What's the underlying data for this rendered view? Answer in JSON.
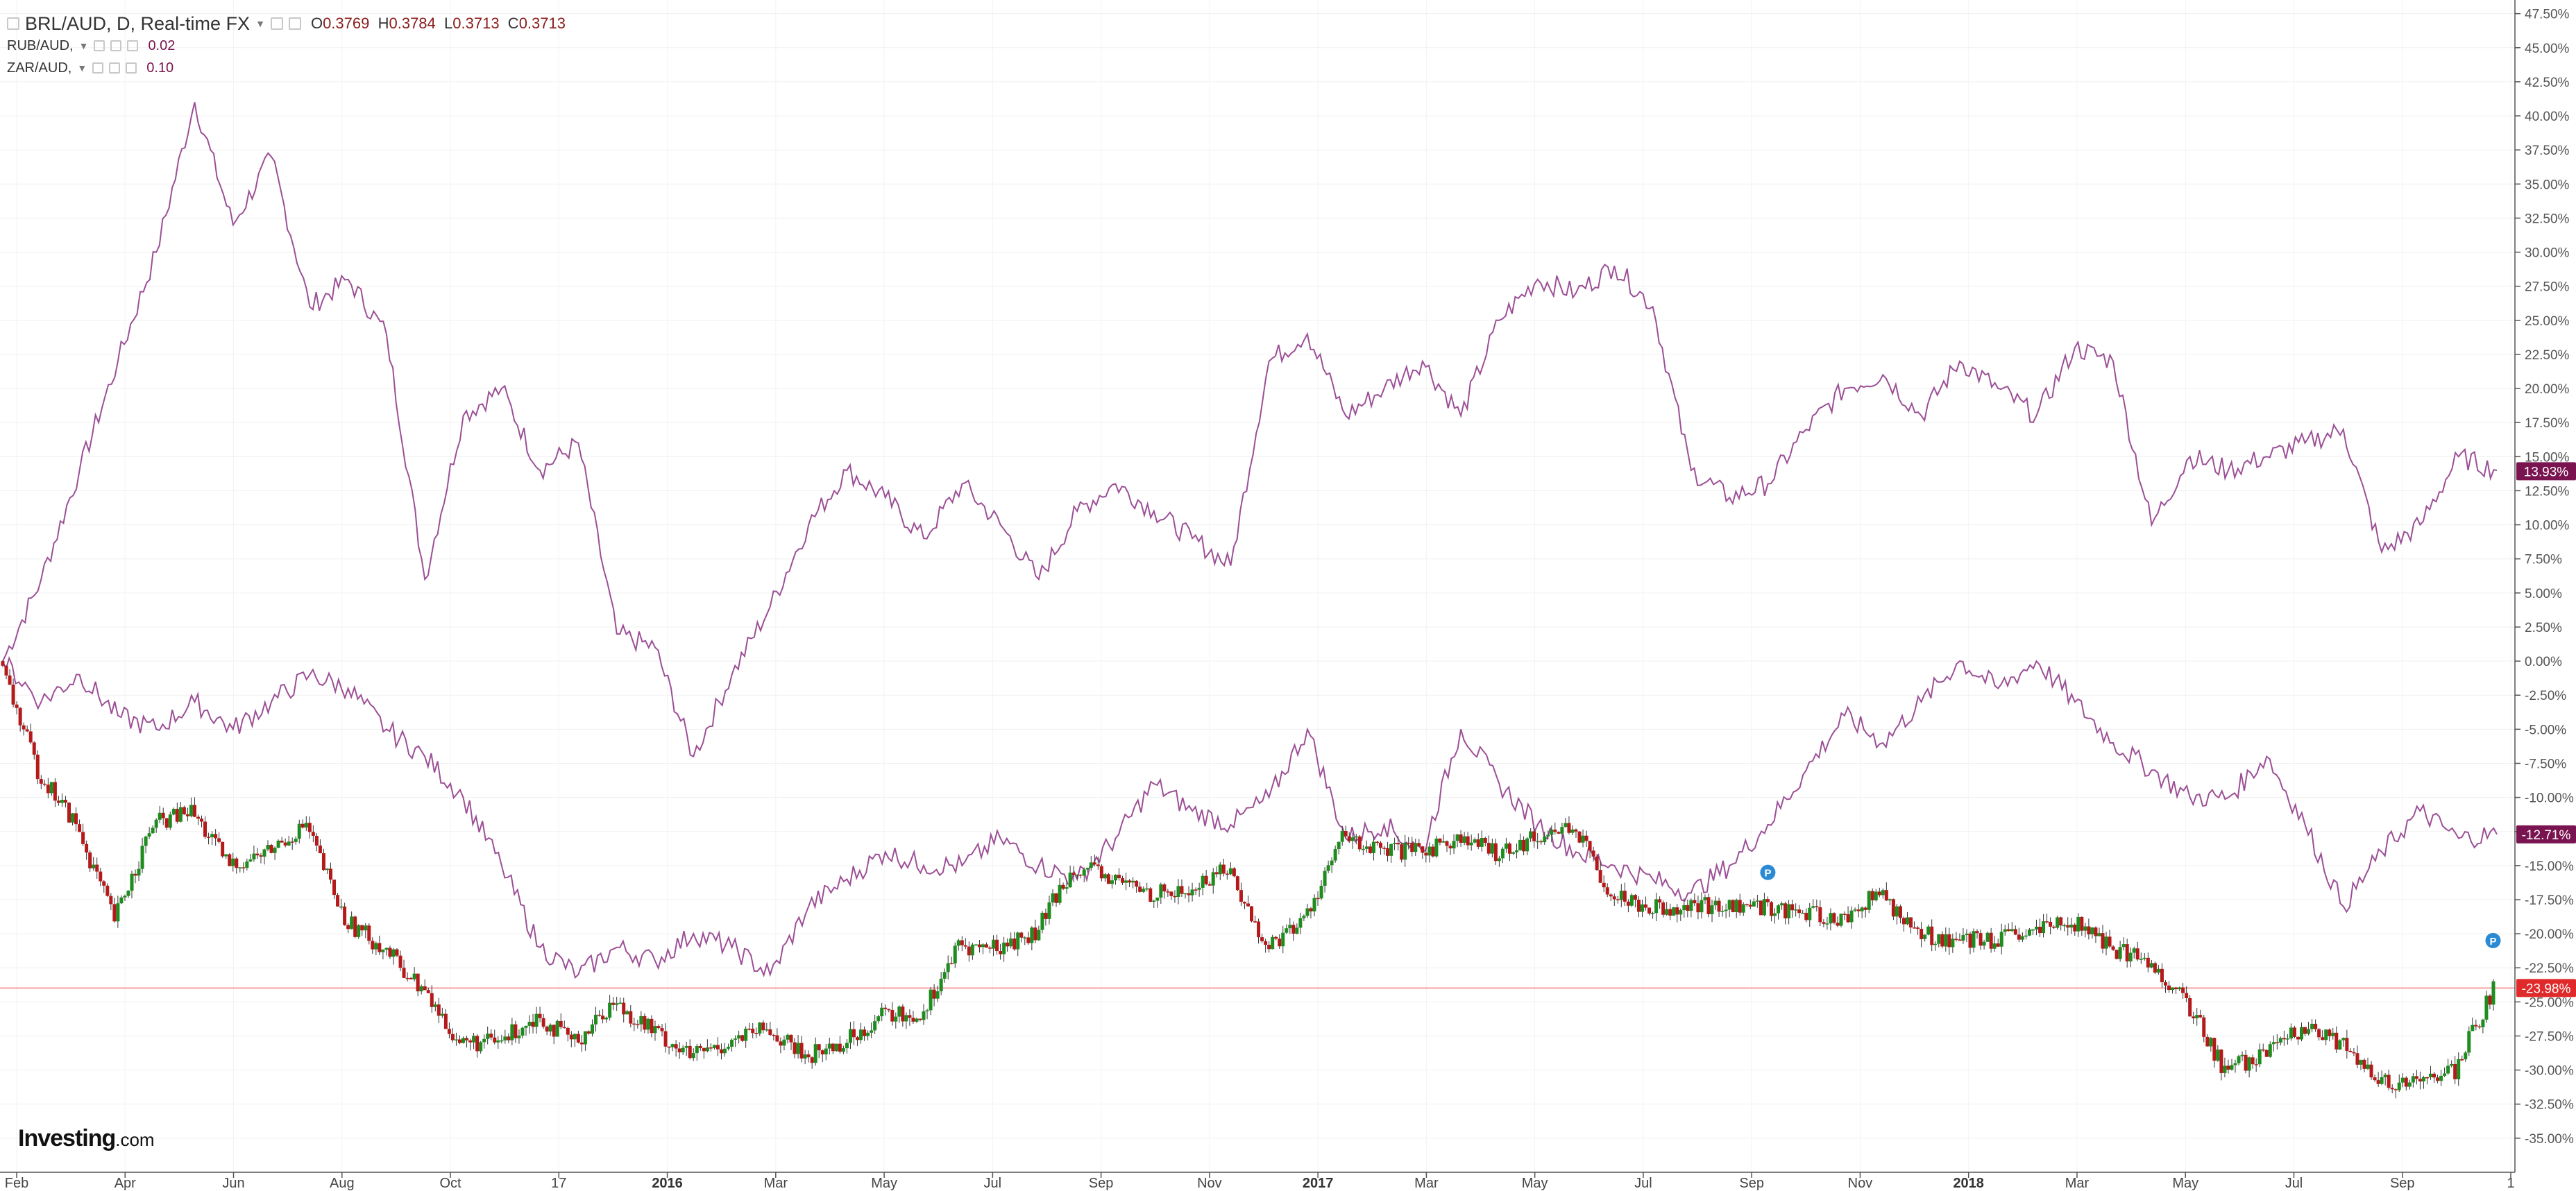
{
  "legend": {
    "main_symbol": "BRL/AUD, D, Real-time FX",
    "ohlc": {
      "o_label": "O",
      "o": "0.3769",
      "h_label": "H",
      "h": "0.3784",
      "l_label": "L",
      "l": "0.3713",
      "c_label": "C",
      "c": "0.3713"
    },
    "comparisons": [
      {
        "symbol": "RUB/AUD,",
        "value": "0.02"
      },
      {
        "symbol": "ZAR/AUD,",
        "value": "0.10"
      }
    ]
  },
  "watermark": {
    "brand": "Investing",
    "suffix": ".com"
  },
  "colors": {
    "up": "#1e8c1e",
    "down": "#b41a1a",
    "compare": "#9c4f96",
    "last_rub": "#c11f1f",
    "last_zar": "#7a1450",
    "last_brl": "#e0292a"
  },
  "chart_data": {
    "type": "line",
    "title": "BRL/AUD, D, Real-time FX",
    "y_unit": "%",
    "ylim": [
      -37.5,
      48.5
    ],
    "y_ticks": [
      "47.50%",
      "45.00%",
      "42.50%",
      "40.00%",
      "37.50%",
      "35.00%",
      "32.50%",
      "30.00%",
      "27.50%",
      "25.00%",
      "22.50%",
      "20.00%",
      "17.50%",
      "15.00%",
      "12.50%",
      "10.00%",
      "7.50%",
      "5.00%",
      "2.50%",
      "0.00%",
      "-2.50%",
      "-5.00%",
      "-7.50%",
      "-10.00%",
      "-12.50%",
      "-15.00%",
      "-17.50%",
      "-20.00%",
      "-22.50%",
      "-25.00%",
      "-27.50%",
      "-30.00%",
      "-32.50%",
      "-35.00%"
    ],
    "x_ticks": [
      {
        "label": "Feb",
        "bold": false
      },
      {
        "label": "Apr",
        "bold": false
      },
      {
        "label": "Jun",
        "bold": false
      },
      {
        "label": "Aug",
        "bold": false
      },
      {
        "label": "Oct",
        "bold": false
      },
      {
        "label": "17",
        "bold": false
      },
      {
        "label": "2016",
        "bold": true
      },
      {
        "label": "Mar",
        "bold": false
      },
      {
        "label": "May",
        "bold": false
      },
      {
        "label": "Jul",
        "bold": false
      },
      {
        "label": "Sep",
        "bold": false
      },
      {
        "label": "Nov",
        "bold": false
      },
      {
        "label": "2017",
        "bold": true
      },
      {
        "label": "Mar",
        "bold": false
      },
      {
        "label": "May",
        "bold": false
      },
      {
        "label": "Jul",
        "bold": false
      },
      {
        "label": "Sep",
        "bold": false
      },
      {
        "label": "Nov",
        "bold": false
      },
      {
        "label": "2018",
        "bold": true
      },
      {
        "label": "Mar",
        "bold": false
      },
      {
        "label": "May",
        "bold": false
      },
      {
        "label": "Jul",
        "bold": false
      },
      {
        "label": "Sep",
        "bold": false
      },
      {
        "label": "1",
        "bold": false
      }
    ],
    "last_values": [
      {
        "series": "RUB/AUD",
        "label": "13.93%",
        "value": 13.93
      },
      {
        "series": "ZAR/AUD",
        "label": "-12.71%",
        "value": -12.71
      },
      {
        "series": "BRL/AUD",
        "label": "-23.98%",
        "value": -23.98
      }
    ],
    "markers": [
      {
        "label": "P",
        "series": "BRL/AUD"
      },
      {
        "label": "P",
        "series": "BRL/AUD"
      }
    ],
    "series": [
      {
        "name": "RUB/AUD",
        "style": "line",
        "values": [
          0,
          6,
          14,
          22,
          30,
          41,
          32,
          37,
          26,
          28,
          24,
          6,
          18,
          20,
          14,
          16,
          2,
          1,
          -7,
          -1,
          4,
          10,
          14,
          12,
          9,
          13,
          10,
          6,
          11,
          13,
          11,
          9,
          7,
          22,
          24,
          18,
          20,
          22,
          18,
          25,
          28,
          27,
          29,
          26,
          14,
          12,
          13,
          17,
          20,
          21,
          18,
          22,
          20,
          18,
          23,
          22,
          10,
          15,
          14,
          15,
          16,
          17,
          8,
          10,
          15,
          14
        ]
      },
      {
        "name": "ZAR/AUD",
        "style": "line",
        "values": [
          0,
          -3,
          -1,
          -4,
          -5,
          -3,
          -5,
          -3,
          -1,
          -2,
          -5,
          -7,
          -10,
          -15,
          -21,
          -23,
          -21,
          -22,
          -20,
          -21,
          -23,
          -18,
          -16,
          -14,
          -15,
          -15,
          -13,
          -15,
          -16,
          -13,
          -9,
          -11,
          -12,
          -10,
          -5,
          -13,
          -12,
          -14,
          -5,
          -9,
          -12,
          -14,
          -15,
          -16,
          -17,
          -15,
          -12,
          -8,
          -4,
          -6,
          -3,
          0,
          -2,
          0,
          -3,
          -6,
          -8,
          -10,
          -10,
          -7,
          -12,
          -18,
          -14,
          -11,
          -13,
          -12.71
        ]
      },
      {
        "name": "BRL/AUD",
        "style": "candles",
        "values": [
          0,
          -8,
          -12,
          -19,
          -12,
          -11,
          -15,
          -14,
          -12,
          -19,
          -21,
          -24,
          -28,
          -28,
          -26,
          -28,
          -25,
          -27,
          -29,
          -28,
          -27,
          -29,
          -28,
          -26,
          -26,
          -21,
          -21,
          -20,
          -15,
          -16,
          -17,
          -17,
          -15,
          -21,
          -19,
          -13,
          -14,
          -14,
          -13,
          -14,
          -13,
          -12,
          -17,
          -18,
          -18,
          -18,
          -18,
          -18.5,
          -19,
          -17,
          -20,
          -20.5,
          -20.5,
          -20,
          -19,
          -21,
          -22,
          -25,
          -30,
          -29,
          -27,
          -28,
          -31,
          -31,
          -30,
          -24
        ]
      }
    ]
  }
}
